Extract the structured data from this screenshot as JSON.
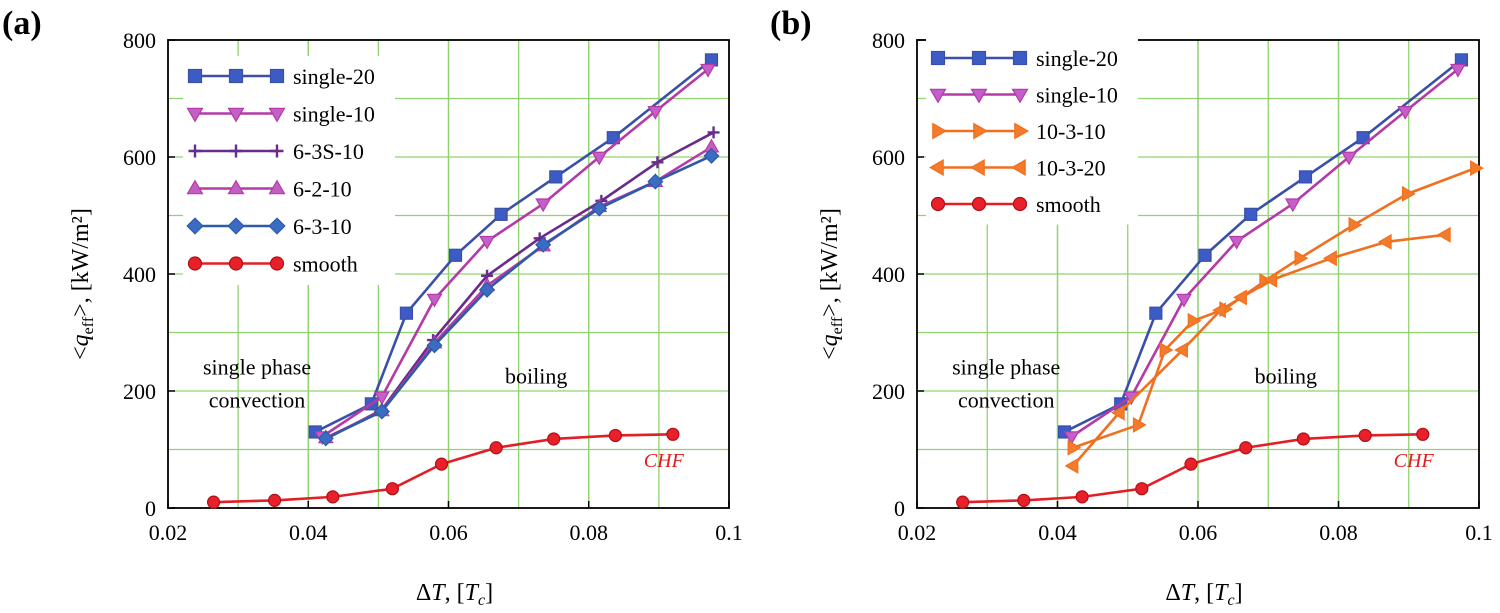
{
  "chart_data": [
    {
      "type": "line",
      "panel_label": "(a)",
      "xlabel": "ΔT, [Tc]",
      "ylabel": "<qeff>, [kW/m²]",
      "xlim": [
        0.02,
        0.1
      ],
      "ylim": [
        0,
        800
      ],
      "xticks": [
        0.02,
        0.04,
        0.06,
        0.08,
        0.1
      ],
      "xtick_labels": [
        "0.02",
        "0.04",
        "0.06",
        "0.08",
        "0.1"
      ],
      "yticks": [
        0,
        200,
        400,
        600,
        800
      ],
      "ytick_labels": [
        "0",
        "200",
        "400",
        "600",
        "800"
      ],
      "grid": true,
      "legend_position": "top-left",
      "series": [
        {
          "name": "single-20",
          "color": "#3a4fa8",
          "fill": "#3d5bc4",
          "marker": "square",
          "x": [
            0.041,
            0.049,
            0.054,
            0.061,
            0.0675,
            0.0753,
            0.0835,
            0.0975
          ],
          "y": [
            130,
            178,
            333,
            432,
            502,
            566,
            633,
            766
          ]
        },
        {
          "name": "single-10",
          "color": "#b43aa8",
          "fill": "#c45ec8",
          "marker": "triangle-down",
          "x": [
            0.042,
            0.0505,
            0.058,
            0.0655,
            0.0735,
            0.0815,
            0.0895,
            0.097
          ],
          "y": [
            122,
            190,
            357,
            456,
            520,
            600,
            678,
            750
          ]
        },
        {
          "name": "6-3S-10",
          "color": "#6a2c8a",
          "fill": "#6a2c8a",
          "marker": "plus",
          "x": [
            0.0425,
            0.0505,
            0.0578,
            0.0655,
            0.073,
            0.0818,
            0.0898,
            0.0978
          ],
          "y": [
            118,
            168,
            287,
            397,
            461,
            525,
            591,
            642
          ]
        },
        {
          "name": "6-2-10",
          "color": "#b83aa8",
          "fill": "#c25fc0",
          "marker": "triangle-up",
          "x": [
            0.0425,
            0.0505,
            0.058,
            0.0655,
            0.0735,
            0.0815,
            0.0895,
            0.0975
          ],
          "y": [
            120,
            166,
            282,
            380,
            448,
            515,
            558,
            617
          ]
        },
        {
          "name": "6-3-10",
          "color": "#2e5aa8",
          "fill": "#3b6cc4",
          "marker": "diamond",
          "x": [
            0.0425,
            0.0505,
            0.058,
            0.0655,
            0.0735,
            0.0815,
            0.0895,
            0.0975
          ],
          "y": [
            119,
            165,
            278,
            373,
            450,
            512,
            558,
            602
          ]
        },
        {
          "name": "smooth",
          "color": "#e21e26",
          "fill": "#e8202a",
          "marker": "circle",
          "x": [
            0.0265,
            0.0352,
            0.0435,
            0.052,
            0.059,
            0.0668,
            0.075,
            0.0838,
            0.092
          ],
          "y": [
            10,
            13,
            19,
            33,
            75,
            103,
            118,
            124,
            126
          ]
        }
      ],
      "annotations": [
        {
          "text": "single phase",
          "x": 0.0327,
          "y": 228
        },
        {
          "text": "convection",
          "x": 0.0327,
          "y": 172
        },
        {
          "text": "boiling",
          "x": 0.0725,
          "y": 213
        },
        {
          "text": "CHF",
          "x": 0.0907,
          "y": 70
        }
      ]
    },
    {
      "type": "line",
      "panel_label": "(b)",
      "xlabel": "ΔT, [Tc]",
      "ylabel": "<qeff>, [kW/m²]",
      "xlim": [
        0.02,
        0.1
      ],
      "ylim": [
        0,
        800
      ],
      "xticks": [
        0.02,
        0.04,
        0.06,
        0.08,
        0.1
      ],
      "xtick_labels": [
        "0.02",
        "0.04",
        "0.06",
        "0.08",
        "0.1"
      ],
      "yticks": [
        0,
        200,
        400,
        600,
        800
      ],
      "ytick_labels": [
        "0",
        "200",
        "400",
        "600",
        "800"
      ],
      "grid": true,
      "legend_position": "top-left",
      "series": [
        {
          "name": "single-20",
          "color": "#3a4fa8",
          "fill": "#3d5bc4",
          "marker": "square",
          "x": [
            0.041,
            0.049,
            0.054,
            0.061,
            0.0675,
            0.0753,
            0.0835,
            0.0975
          ],
          "y": [
            130,
            178,
            333,
            432,
            502,
            566,
            633,
            766
          ]
        },
        {
          "name": "single-10",
          "color": "#b43aa8",
          "fill": "#c45ec8",
          "marker": "triangle-down",
          "x": [
            0.042,
            0.0505,
            0.058,
            0.0655,
            0.0735,
            0.0815,
            0.0895,
            0.097
          ],
          "y": [
            122,
            190,
            357,
            456,
            520,
            600,
            678,
            750
          ]
        },
        {
          "name": "10-3-10",
          "color": "#f07020",
          "fill": "#f47b2a",
          "marker": "triangle-right",
          "x": [
            0.0422,
            0.0515,
            0.0553,
            0.0593,
            0.0638,
            0.0695,
            0.0745,
            0.0822,
            0.0898,
            0.0995
          ],
          "y": [
            103,
            142,
            270,
            320,
            340,
            388,
            427,
            484,
            537,
            581
          ]
        },
        {
          "name": "10-3-20",
          "color": "#f07020",
          "fill": "#f47b2a",
          "marker": "triangle-left",
          "x": [
            0.0422,
            0.0488,
            0.0578,
            0.0632,
            0.0662,
            0.0705,
            0.079,
            0.0868,
            0.0952
          ],
          "y": [
            72,
            163,
            270,
            338,
            360,
            390,
            427,
            455,
            467
          ]
        },
        {
          "name": "smooth",
          "color": "#e21e26",
          "fill": "#e8202a",
          "marker": "circle",
          "x": [
            0.0265,
            0.0352,
            0.0435,
            0.052,
            0.059,
            0.0668,
            0.075,
            0.0838,
            0.092
          ],
          "y": [
            10,
            13,
            19,
            33,
            75,
            103,
            118,
            124,
            126
          ]
        }
      ],
      "annotations": [
        {
          "text": "single phase",
          "x": 0.0327,
          "y": 228
        },
        {
          "text": "convection",
          "x": 0.0327,
          "y": 172
        },
        {
          "text": "boiling",
          "x": 0.0725,
          "y": 213
        },
        {
          "text": "CHF",
          "x": 0.0907,
          "y": 70
        }
      ]
    }
  ]
}
